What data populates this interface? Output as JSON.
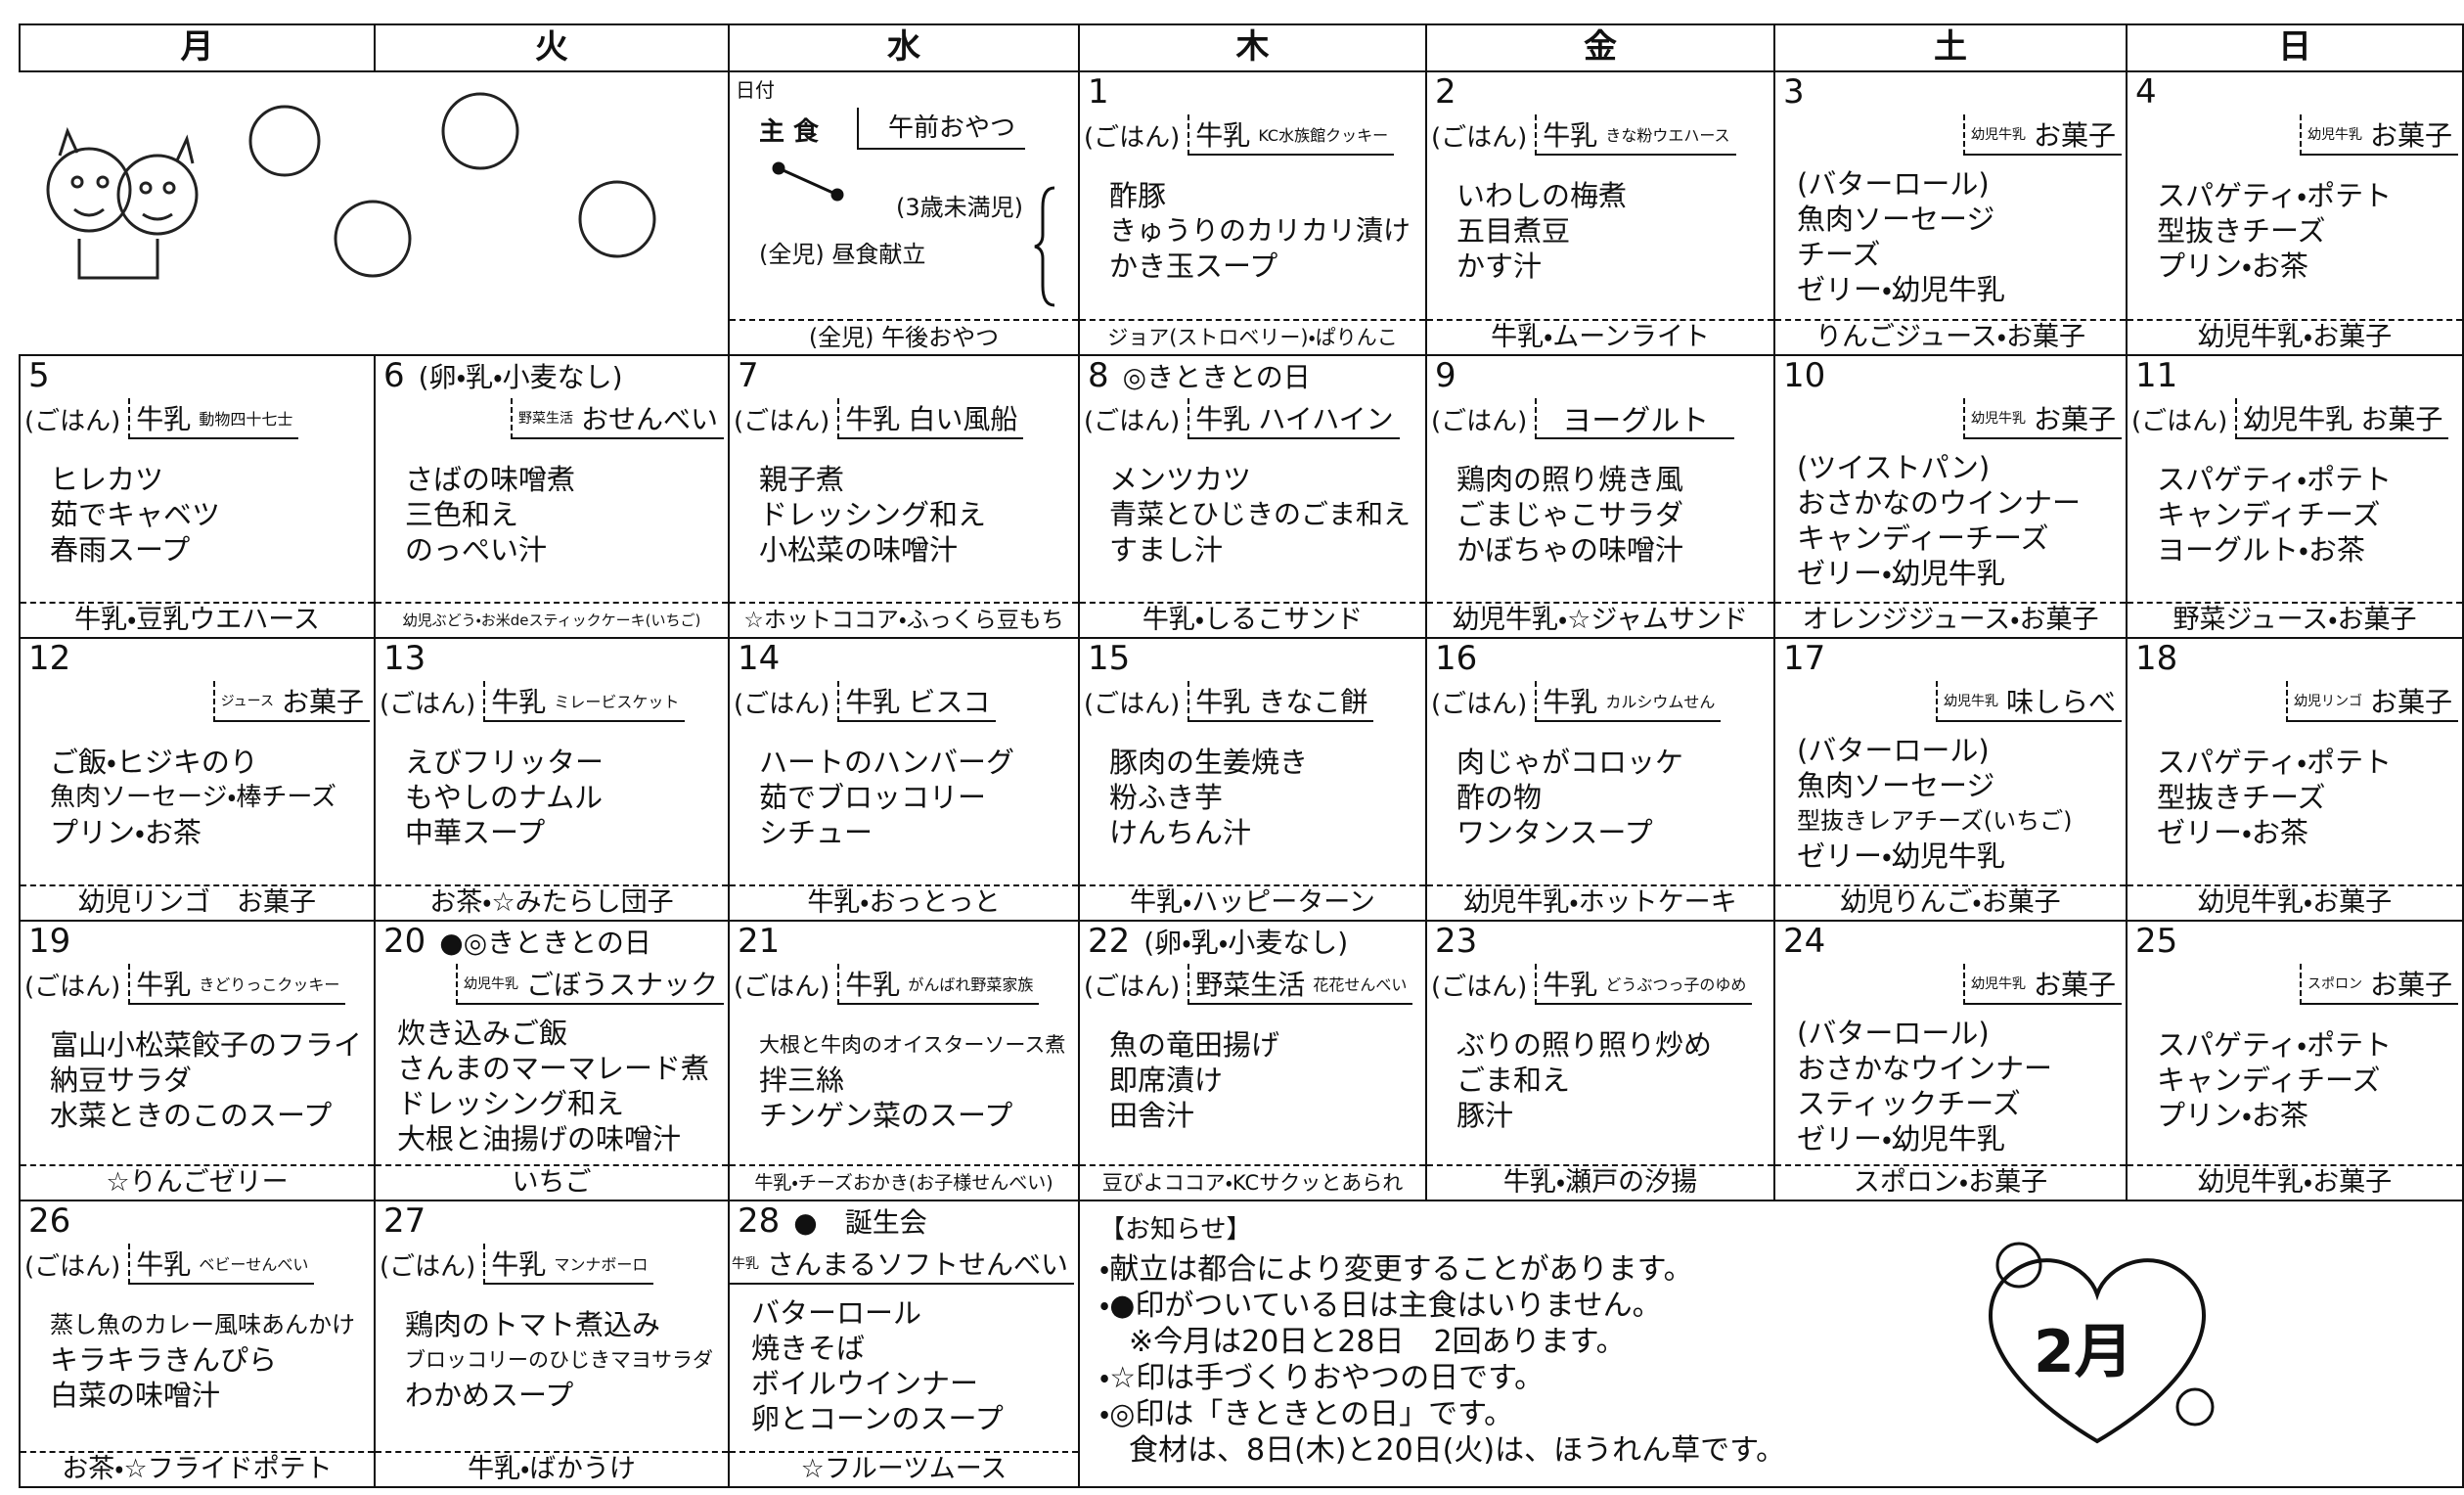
{
  "header": {
    "days": [
      "月",
      "火",
      "水",
      "木",
      "金",
      "土",
      "日"
    ]
  },
  "legend": {
    "date": "日付",
    "staple": "主 食",
    "morning": "午前おやつ",
    "under3": "(3歳未満児)",
    "lunch": "(全児) 昼食献立",
    "afternoon": "(全児) 午後おやつ"
  },
  "weeks": [
    [
      {
        "date": "1",
        "staple": "(ごはん)",
        "milk": "牛乳",
        "snack": "KC水族館クッキー",
        "dishes": [
          "酢豚",
          "きゅうりのカリカリ漬け",
          "かき玉スープ"
        ],
        "afternoon": "ジョア(ストロベリー)・ぱりんこ"
      },
      {
        "date": "2",
        "staple": "(ごはん)",
        "milk": "牛乳",
        "snack": "きな粉ウエハース",
        "dishes": [
          "いわしの梅煮",
          "五目煮豆",
          "かす汁"
        ],
        "afternoon": "牛乳・ムーンライト"
      },
      {
        "date": "3",
        "milk": "幼児牛乳",
        "snack": "お菓子",
        "dishes": [
          "(バターロール)",
          "魚肉ソーセージ",
          "チーズ",
          "ゼリー・幼児牛乳"
        ],
        "afternoon": "りんごジュース・お菓子"
      },
      {
        "date": "4",
        "milk": "幼児牛乳",
        "snack": "お菓子",
        "dishes": [
          "スパゲティ・ポテト",
          "型抜きチーズ",
          "プリン・お茶"
        ],
        "afternoon": "幼児牛乳・お菓子"
      }
    ],
    [
      {
        "date": "5",
        "staple": "(ごはん)",
        "milk": "牛乳",
        "snack": "動物四十七士",
        "dishes": [
          "ヒレカツ",
          "茹でキャベツ",
          "春雨スープ"
        ],
        "afternoon": "牛乳・豆乳ウエハース"
      },
      {
        "date": "6",
        "note": "(卵・乳・小麦なし)",
        "milk": "野菜生活",
        "snack": "おせんべい",
        "dishes": [
          "さばの味噌煮",
          "三色和え",
          "のっぺい汁"
        ],
        "afternoon": "幼児ぶどう・お米deスティックケーキ(いちご)"
      },
      {
        "date": "7",
        "staple": "(ごはん)",
        "milk": "牛乳",
        "snack": "白い風船",
        "dishes": [
          "親子煮",
          "ドレッシング和え",
          "小松菜の味噌汁"
        ],
        "afternoon": "☆ホットココア・ふっくら豆もち"
      },
      {
        "date": "8",
        "note": "◎きときとの日",
        "staple": "(ごはん)",
        "milk": "牛乳",
        "snack": "ハイハイン",
        "dishes": [
          "メンツカツ",
          "青菜とひじきのごま和え",
          "すまし汁"
        ],
        "afternoon": "牛乳・しるこサンド"
      },
      {
        "date": "9",
        "staple": "(ごはん)",
        "milk": "ヨーグルト",
        "dishes": [
          "鶏肉の照り焼き風",
          "ごまじゃこサラダ",
          "かぼちゃの味噌汁"
        ],
        "afternoon": "幼児牛乳・☆ジャムサンド"
      },
      {
        "date": "10",
        "milk": "幼児牛乳",
        "snack": "お菓子",
        "dishes": [
          "(ツイストパン)",
          "おさかなのウインナー",
          "キャンディーチーズ",
          "ゼリー・幼児牛乳"
        ],
        "afternoon": "オレンジジュース・お菓子"
      },
      {
        "date": "11",
        "staple": "(ごはん)",
        "milk": "幼児牛乳",
        "snack": "お菓子",
        "dishes": [
          "スパゲティ・ポテト",
          "キャンディチーズ",
          "ヨーグルト・お茶"
        ],
        "afternoon": "野菜ジュース・お菓子"
      }
    ],
    [
      {
        "date": "12",
        "milk": "ジュース",
        "snack": "お菓子",
        "dishes": [
          "ご飯・ヒジキのり",
          "魚肉ソーセージ・棒チーズ",
          "プリン・お茶"
        ],
        "afternoon": "幼児リンゴ　お菓子"
      },
      {
        "date": "13",
        "staple": "(ごはん)",
        "milk": "牛乳",
        "snack": "ミレービスケット",
        "dishes": [
          "えびフリッター",
          "もやしのナムル",
          "中華スープ"
        ],
        "afternoon": "お茶・☆みたらし団子"
      },
      {
        "date": "14",
        "staple": "(ごはん)",
        "milk": "牛乳",
        "snack": "ビスコ",
        "dishes": [
          "ハートのハンバーグ",
          "茹でブロッコリー",
          "シチュー"
        ],
        "afternoon": "牛乳・おっとっと"
      },
      {
        "date": "15",
        "staple": "(ごはん)",
        "milk": "牛乳",
        "snack": "きなこ餅",
        "dishes": [
          "豚肉の生姜焼き",
          "粉ふき芋",
          "けんちん汁"
        ],
        "afternoon": "牛乳・ハッピーターン"
      },
      {
        "date": "16",
        "staple": "(ごはん)",
        "milk": "牛乳",
        "snack": "カルシウムせん",
        "dishes": [
          "肉じゃがコロッケ",
          "酢の物",
          "ワンタンスープ"
        ],
        "afternoon": "幼児牛乳・ホットケーキ"
      },
      {
        "date": "17",
        "milk": "幼児牛乳",
        "snack": "味しらべ",
        "dishes": [
          "(バターロール)",
          "魚肉ソーセージ",
          "型抜きレアチーズ(いちご)",
          "ゼリー・幼児牛乳"
        ],
        "afternoon": "幼児りんご・お菓子"
      },
      {
        "date": "18",
        "milk": "幼児リンゴ",
        "snack": "お菓子",
        "dishes": [
          "スパゲティ・ポテト",
          "型抜きチーズ",
          "ゼリー・お茶"
        ],
        "afternoon": "幼児牛乳・お菓子"
      }
    ],
    [
      {
        "date": "19",
        "staple": "(ごはん)",
        "milk": "牛乳",
        "snack": "きどりっこクッキー",
        "dishes": [
          "富山小松菜餃子のフライ",
          "納豆サラダ",
          "水菜ときのこのスープ"
        ],
        "afternoon": "☆りんごゼリー"
      },
      {
        "date": "20",
        "note": "●◎きときとの日",
        "milk": "幼児牛乳",
        "snack": "ごぼうスナック",
        "dishes": [
          "炊き込みご飯",
          "さんまのマーマレード煮",
          "ドレッシング和え",
          "大根と油揚げの味噌汁"
        ],
        "afternoon": "いちご"
      },
      {
        "date": "21",
        "staple": "(ごはん)",
        "milk": "牛乳",
        "snack": "がんばれ野菜家族",
        "dishes": [
          "大根と牛肉のオイスターソース煮",
          "拌三絲",
          "チンゲン菜のスープ"
        ],
        "afternoon": "牛乳・チーズおかき(お子様せんべい)"
      },
      {
        "date": "22",
        "note": "(卵・乳・小麦なし)",
        "staple": "(ごはん)",
        "milk": "野菜生活",
        "snack": "花花せんべい",
        "dishes": [
          "魚の竜田揚げ",
          "即席漬け",
          "田舎汁"
        ],
        "afternoon": "豆びよココア・KCサクッとあられ"
      },
      {
        "date": "23",
        "staple": "(ごはん)",
        "milk": "牛乳",
        "snack": "どうぶつっ子のゆめ",
        "dishes": [
          "ぶりの照り照り炒め",
          "ごま和え",
          "豚汁"
        ],
        "afternoon": "牛乳・瀬戸の汐揚"
      },
      {
        "date": "24",
        "milk": "幼児牛乳",
        "snack": "お菓子",
        "dishes": [
          "(バターロール)",
          "おさかなウインナー",
          "スティックチーズ",
          "ゼリー・幼児牛乳"
        ],
        "afternoon": "スポロン・お菓子"
      },
      {
        "date": "25",
        "milk": "スポロン",
        "snack": "お菓子",
        "dishes": [
          "スパゲティ・ポテト",
          "キャンディチーズ",
          "プリン・お茶"
        ],
        "afternoon": "幼児牛乳・お菓子"
      }
    ],
    [
      {
        "date": "26",
        "staple": "(ごはん)",
        "milk": "牛乳",
        "snack": "ベビーせんべい",
        "dishes": [
          "蒸し魚のカレー風味あんかけ",
          "キラキラきんぴら",
          "白菜の味噌汁"
        ],
        "afternoon": "お茶・☆フライドポテト"
      },
      {
        "date": "27",
        "staple": "(ごはん)",
        "milk": "牛乳",
        "snack": "マンナボーロ",
        "dishes": [
          "鶏肉のトマト煮込み",
          "ブロッコリーのひじきマヨサラダ",
          "わかめスープ"
        ],
        "afternoon": "牛乳・ばかうけ"
      },
      {
        "date": "28",
        "note": "●　誕生会",
        "milk": "牛乳",
        "snack": "さんまるソフトせんべい",
        "dishes": [
          "バターロール",
          "焼きそば",
          "ボイルウインナー",
          "卵とコーンのスープ"
        ],
        "afternoon": "☆フルーツムース"
      }
    ]
  ],
  "notice": {
    "title": "【お知らせ】",
    "lines": [
      "・献立は都合により変更することがあります。",
      "・●印がついている日は主食はいりません。",
      "※今月は20日と28日　2回あります。",
      "・☆印は手づくりおやつの日です。",
      "・◎印は「きときとの日」です。",
      "食材は、8日(木)と20日(火)は、ほうれん草です。"
    ],
    "badge": "2月"
  }
}
